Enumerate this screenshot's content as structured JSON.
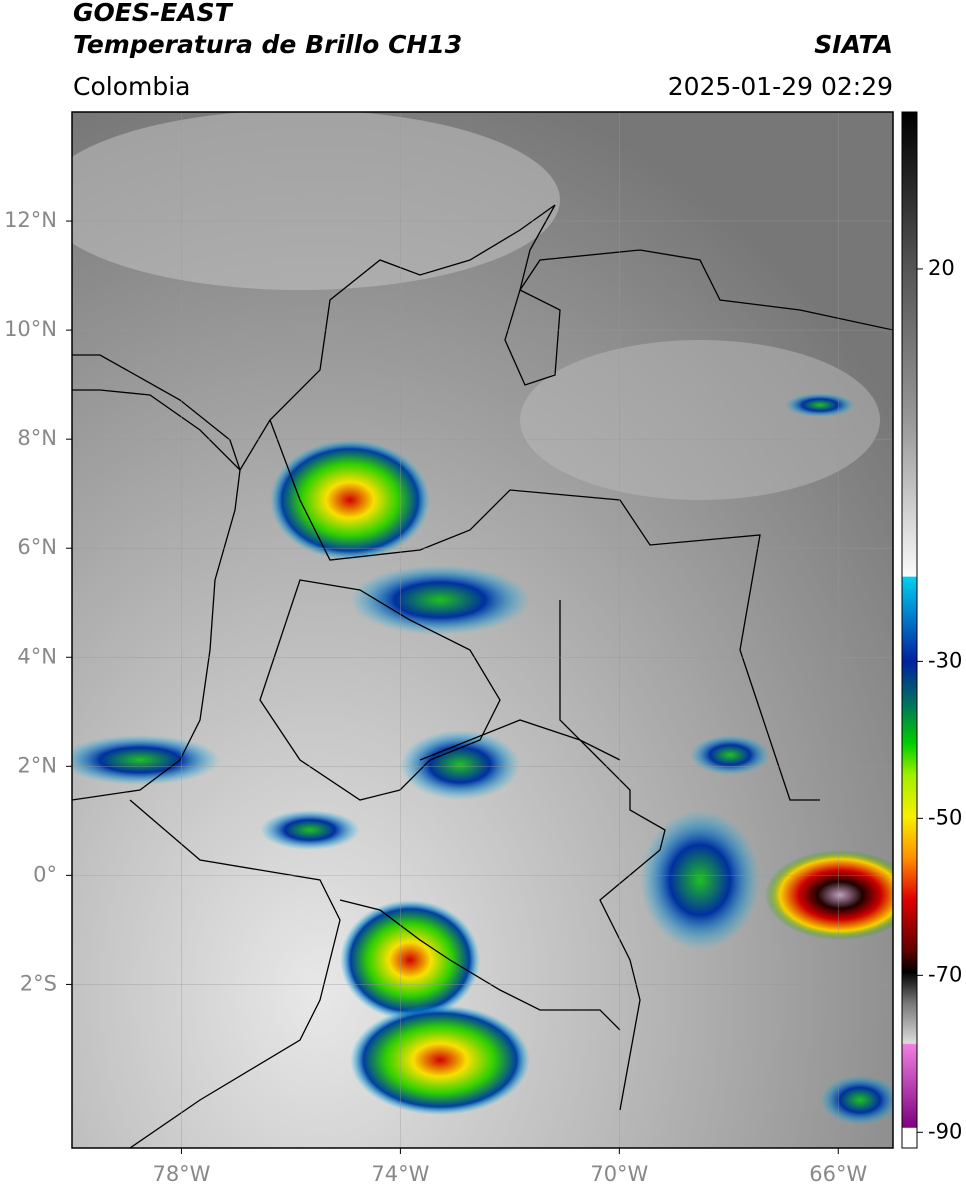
{
  "header": {
    "title": "GOES-EAST",
    "subtitle": "Temperatura de Brillo CH13",
    "region": "Colombia",
    "source": "SIATA",
    "timestamp": "2025-01-29 02:29"
  },
  "map": {
    "xlim": [
      -80,
      -65
    ],
    "ylim": [
      -5,
      14
    ],
    "xticks": [
      {
        "value": -78,
        "label": "78°W"
      },
      {
        "value": -74,
        "label": "74°W"
      },
      {
        "value": -70,
        "label": "70°W"
      },
      {
        "value": -66,
        "label": "66°W"
      }
    ],
    "yticks": [
      {
        "value": 12,
        "label": "12°N"
      },
      {
        "value": 10,
        "label": "10°N"
      },
      {
        "value": 8,
        "label": "8°N"
      },
      {
        "value": 6,
        "label": "6°N"
      },
      {
        "value": 4,
        "label": "4°N"
      },
      {
        "value": 2,
        "label": "2°N"
      },
      {
        "value": 0,
        "label": "0°"
      },
      {
        "value": -2,
        "label": "2°S"
      }
    ],
    "grid": true
  },
  "colorbar": {
    "lim": [
      -92,
      40
    ],
    "ticks": [
      20,
      -30,
      -50,
      -70,
      -90
    ]
  }
}
